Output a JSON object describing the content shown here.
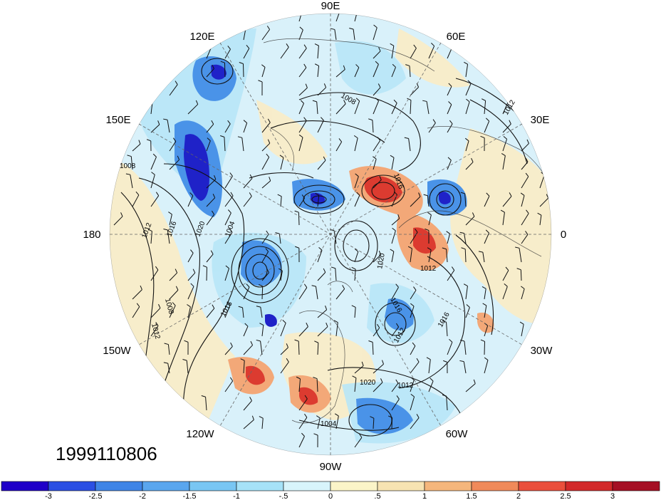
{
  "map": {
    "projection": "north-polar-stereographic",
    "longitude_labels": {
      "top": "90E",
      "top_left": "120E",
      "top_right": "60E",
      "upper_left": "150E",
      "upper_right": "30E",
      "left": "180",
      "right": "0",
      "lower_left": "150W",
      "lower_right": "30W",
      "bottom_left": "120W",
      "bottom_right": "60W",
      "bottom": "90W"
    },
    "date_label": "1999110806",
    "isobar_labels": [
      "1008",
      "1012",
      "1016",
      "1020",
      "1004",
      "1008",
      "1012",
      "1016",
      "1020",
      "1012",
      "1016",
      "1012",
      "1016",
      "1020",
      "1012",
      "1004",
      "1008",
      "1016",
      "1012"
    ],
    "fill_colors": {
      "strong_negative": "#1f22c8",
      "negative": "#3f84e6",
      "weak_negative": "#a6e2f8",
      "weak_positive": "#f7e3b2",
      "positive": "#f08a5a",
      "strong_positive": "#d2292a"
    }
  },
  "colorbar": {
    "ticks": [
      "-3",
      "-2.5",
      "-2",
      "-1.5",
      "-1",
      "-.5",
      "0",
      ".5",
      "1",
      "1.5",
      "2",
      "2.5",
      "3"
    ],
    "colors": [
      "#1f00c8",
      "#2b4fe3",
      "#3f84e6",
      "#5aa6ee",
      "#79c6f3",
      "#a6e2f8",
      "#d8f4fb",
      "#fbf4c8",
      "#f7e3b2",
      "#f5b67c",
      "#f08a5a",
      "#ea4f3c",
      "#d2292a",
      "#a50f24"
    ]
  }
}
